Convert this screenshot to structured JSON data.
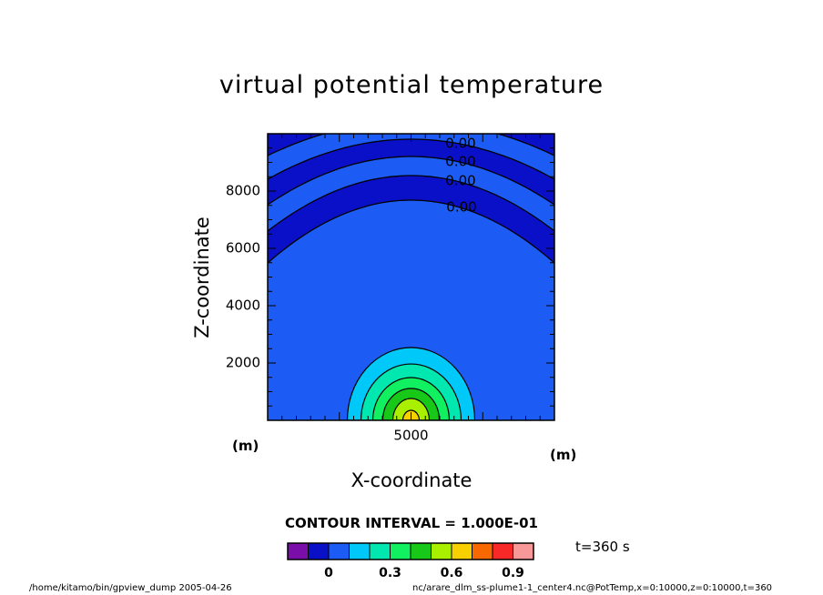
{
  "chart_data": {
    "type": "heatmap",
    "title": "virtual potential temperature",
    "xlabel": "X-coordinate",
    "ylabel": "Z-coordinate",
    "x_unit": "(m)",
    "y_unit": "(m)",
    "xlim": [
      0,
      10000
    ],
    "ylim": [
      0,
      10000
    ],
    "x_ticks": [
      5000
    ],
    "y_ticks": [
      2000,
      4000,
      6000,
      8000
    ],
    "contour_labels": [
      "0.00",
      "0.00",
      "0.00",
      "0.00"
    ],
    "contour_interval": "CONTOUR INTERVAL = 1.000E-01",
    "time": "t=360 s",
    "colorbar": {
      "colors": [
        "#7a0ea8",
        "#0a10c8",
        "#1c5cf4",
        "#00c8f8",
        "#00e8b0",
        "#10f060",
        "#18c818",
        "#a8f000",
        "#f8d000",
        "#f86800",
        "#f82828",
        "#f89898"
      ],
      "tick_labels": [
        "0",
        "0.3",
        "0.6",
        "0.9"
      ]
    },
    "thermal_bubble": {
      "center_x": 5000,
      "base_z": 0,
      "values": [
        0.1,
        0.2,
        0.3,
        0.4,
        0.5,
        0.6
      ]
    }
  },
  "footer": {
    "left": "/home/kitamo/bin/gpview_dump   2005-04-26",
    "right": "nc/arare_dlm_ss-plume1-1_center4.nc@PotTemp,x=0:10000,z=0:10000,t=360"
  }
}
